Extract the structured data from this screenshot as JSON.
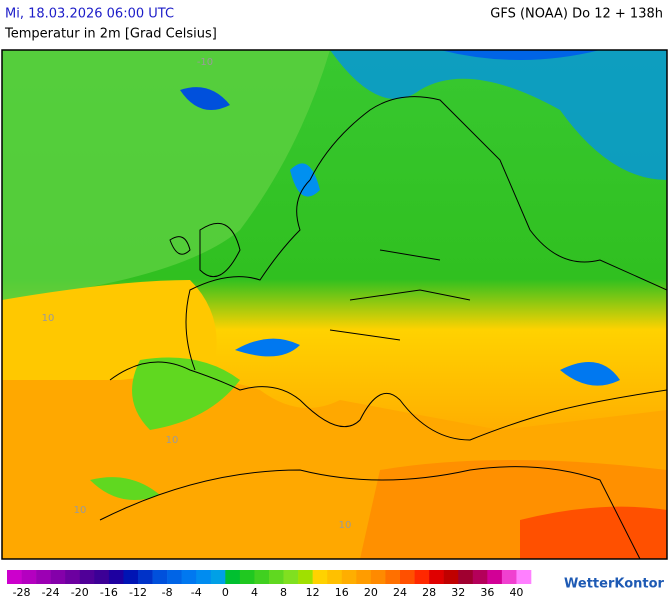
{
  "header": {
    "date": "Mi, 18.03.2026 06:00 UTC",
    "model": "GFS (NOAA) Do 12 + 138h",
    "subtitle": "Temperatur in 2m [Grad Celsius]"
  },
  "map": {
    "contour_labels": [
      "-10",
      "10",
      "10",
      "10",
      "10"
    ]
  },
  "legend": {
    "lim": [
      -30,
      42
    ],
    "ticks": [
      -28,
      -24,
      -20,
      -16,
      -12,
      -8,
      -4,
      0,
      4,
      8,
      12,
      16,
      20,
      24,
      28,
      32,
      36,
      40
    ],
    "colors": [
      "#cc00cc",
      "#b400c0",
      "#9c00b4",
      "#8400aa",
      "#6c00a0",
      "#500098",
      "#3c0096",
      "#1e00a0",
      "#0014b4",
      "#0032c8",
      "#0050dc",
      "#0064e6",
      "#0078f0",
      "#008cf0",
      "#00a0e6",
      "#00c030",
      "#20c820",
      "#40d020",
      "#60d820",
      "#80e020",
      "#a0e000",
      "#ffd200",
      "#ffc000",
      "#ffae00",
      "#ff9c00",
      "#ff8a00",
      "#ff7000",
      "#ff5000",
      "#ff2800",
      "#e00000",
      "#c00000",
      "#a00030",
      "#b4005a",
      "#d20096",
      "#f040d0",
      "#ff80ff"
    ]
  },
  "brand": "WetterKontor"
}
